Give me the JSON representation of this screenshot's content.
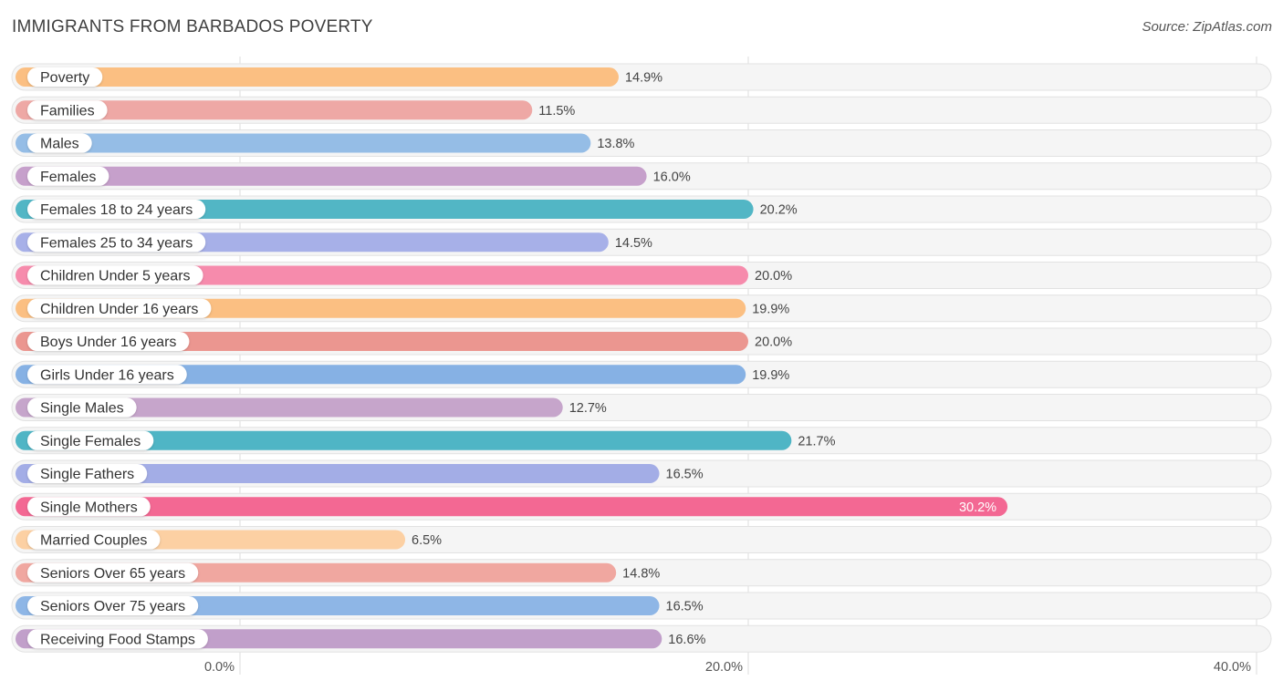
{
  "chart_data": {
    "type": "bar",
    "orientation": "horizontal",
    "title": "IMMIGRANTS FROM BARBADOS POVERTY",
    "source": "Source: ZipAtlas.com",
    "xlim": [
      0,
      40
    ],
    "ticks": [
      {
        "value": 0,
        "label": "0.0%"
      },
      {
        "value": 20,
        "label": "20.0%"
      },
      {
        "value": 40,
        "label": "40.0%"
      }
    ],
    "grid": true,
    "categories": [
      "Poverty",
      "Families",
      "Males",
      "Females",
      "Females 18 to 24 years",
      "Females 25 to 34 years",
      "Children Under 5 years",
      "Children Under 16 years",
      "Boys Under 16 years",
      "Girls Under 16 years",
      "Single Males",
      "Single Females",
      "Single Fathers",
      "Single Mothers",
      "Married Couples",
      "Seniors Over 65 years",
      "Seniors Over 75 years",
      "Receiving Food Stamps"
    ],
    "values": [
      14.9,
      11.5,
      13.8,
      16.0,
      20.2,
      14.5,
      20.0,
      19.9,
      20.0,
      19.9,
      12.7,
      21.7,
      16.5,
      30.2,
      6.5,
      14.8,
      16.5,
      16.6
    ],
    "value_labels": [
      "14.9%",
      "11.5%",
      "13.8%",
      "16.0%",
      "20.2%",
      "14.5%",
      "20.0%",
      "19.9%",
      "20.0%",
      "19.9%",
      "12.7%",
      "21.7%",
      "16.5%",
      "30.2%",
      "6.5%",
      "14.8%",
      "16.5%",
      "16.6%"
    ],
    "colors": [
      "#fbbf82",
      "#eea8a5",
      "#95bde6",
      "#c6a0cb",
      "#52b6c5",
      "#a7b0e8",
      "#f68bac",
      "#fbbf82",
      "#eb9690",
      "#86b1e4",
      "#c6a5cb",
      "#4fb5c5",
      "#a3ade6",
      "#f36893",
      "#fcd0a3",
      "#f0a7a0",
      "#8eb6e6",
      "#c19fca"
    ]
  }
}
